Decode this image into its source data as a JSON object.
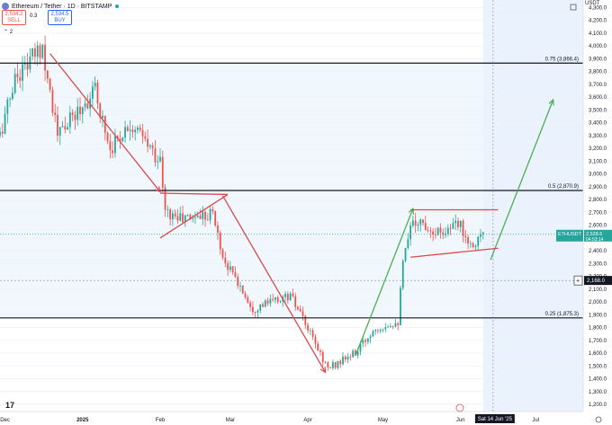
{
  "header": {
    "title": "Ethereum / Tether · 1D · BITSTAMP",
    "sell_price": "2,534.2",
    "sell_label": "SELL",
    "spread": "0.3",
    "buy_price": "2,534.5",
    "buy_label": "BUY",
    "indicator_count": "2",
    "currency": "USDT"
  },
  "price_axis": {
    "ticks": [
      "4,300.0",
      "4,200.0",
      "4,100.0",
      "4,000.0",
      "3,900.0",
      "3,800.0",
      "3,700.0",
      "3,600.0",
      "3,500.0",
      "3,400.0",
      "3,300.0",
      "3,200.0",
      "3,100.0",
      "3,000.0",
      "2,900.0",
      "2,800.0",
      "2,700.0",
      "2,600.0",
      "2,500.0",
      "2,400.0",
      "2,300.0",
      "2,200.0",
      "2,100.0",
      "2,000.0",
      "1,900.0",
      "1,800.0",
      "1,700.0",
      "1,600.0",
      "1,500.0",
      "1,400.0",
      "1,300.0",
      "1,200.0"
    ],
    "current_symbol": "ETHUSDT",
    "current_price": "2,528.6",
    "countdown": "04:53:14",
    "cursor_price": "2,168.0"
  },
  "time_axis": {
    "labels": [
      "Dec",
      "2025",
      "Feb",
      "Mar",
      "Apr",
      "May",
      "Jun",
      "Jul"
    ],
    "cursor_date": "Sat 14 Jun '25"
  },
  "levels": [
    {
      "label": "0.75 (3,866.4)",
      "price": 3866.4
    },
    {
      "label": "0.5 (2,870.9)",
      "price": 2870.9
    },
    {
      "label": "0.25 (1,875.3)",
      "price": 1875.3
    }
  ],
  "colors": {
    "up": "#26a69a",
    "down": "#ef5350",
    "bear_arrow": "#d84a4a",
    "bull_arrow": "#4caf50",
    "price_badge": "#26a69a",
    "cursor_badge": "#131722",
    "level_line": "#131722"
  },
  "chart_data": {
    "type": "candlestick",
    "title": "Ethereum / Tether · 1D · BITSTAMP",
    "ylim": [
      1200,
      4300
    ],
    "x_range": [
      "2024-11-29",
      "2025-07-20"
    ],
    "log_scale": false,
    "current_price": 2528.6,
    "fib_levels": [
      {
        "ratio": 0.75,
        "price": 3866.4
      },
      {
        "ratio": 0.5,
        "price": 2870.9
      },
      {
        "ratio": 0.25,
        "price": 1875.3
      }
    ],
    "price_path": [
      {
        "date": "2024-11-29",
        "price": 3300
      },
      {
        "date": "2024-12-05",
        "price": 3750
      },
      {
        "date": "2024-12-16",
        "price": 4000
      },
      {
        "date": "2024-12-22",
        "price": 3300
      },
      {
        "date": "2025-01-06",
        "price": 3650
      },
      {
        "date": "2025-01-12",
        "price": 3200
      },
      {
        "date": "2025-01-20",
        "price": 3400
      },
      {
        "date": "2025-02-01",
        "price": 3100
      },
      {
        "date": "2025-02-03",
        "price": 2700
      },
      {
        "date": "2025-02-10",
        "price": 2650
      },
      {
        "date": "2025-02-22",
        "price": 2700
      },
      {
        "date": "2025-02-26",
        "price": 2350
      },
      {
        "date": "2025-03-10",
        "price": 1950
      },
      {
        "date": "2025-03-25",
        "price": 2050
      },
      {
        "date": "2025-04-09",
        "price": 1480
      },
      {
        "date": "2025-04-20",
        "price": 1600
      },
      {
        "date": "2025-04-28",
        "price": 1800
      },
      {
        "date": "2025-05-07",
        "price": 1850
      },
      {
        "date": "2025-05-09",
        "price": 2300
      },
      {
        "date": "2025-05-13",
        "price": 2650
      },
      {
        "date": "2025-05-23",
        "price": 2550
      },
      {
        "date": "2025-06-01",
        "price": 2600
      },
      {
        "date": "2025-06-05",
        "price": 2450
      },
      {
        "date": "2025-06-10",
        "price": 2530
      }
    ],
    "drawings": {
      "bear_arrows": [
        [
          {
            "date": "2024-12-19",
            "price": 3940
          },
          {
            "date": "2025-02-01",
            "price": 2860
          }
        ],
        [
          {
            "date": "2025-02-26",
            "price": 2830
          },
          {
            "date": "2025-04-08",
            "price": 1450
          }
        ]
      ],
      "bull_arrow": [
        {
          "date": "2025-04-20",
          "price": 1580
        },
        {
          "date": "2025-05-13",
          "price": 2730
        },
        {
          "date": "2025-06-13",
          "price": 2330
        },
        {
          "date": "2025-07-08",
          "price": 3580
        }
      ],
      "wedge": [
        [
          {
            "date": "2025-02-01",
            "price": 2850
          },
          {
            "date": "2025-02-28",
            "price": 2840
          }
        ],
        [
          {
            "date": "2025-02-01",
            "price": 2500
          },
          {
            "date": "2025-02-28",
            "price": 2840
          }
        ]
      ],
      "range_box": [
        [
          {
            "date": "2025-05-12",
            "price": 2720
          },
          {
            "date": "2025-06-16",
            "price": 2720
          }
        ],
        [
          {
            "date": "2025-05-12",
            "price": 2350
          },
          {
            "date": "2025-06-16",
            "price": 2420
          }
        ]
      ]
    }
  }
}
